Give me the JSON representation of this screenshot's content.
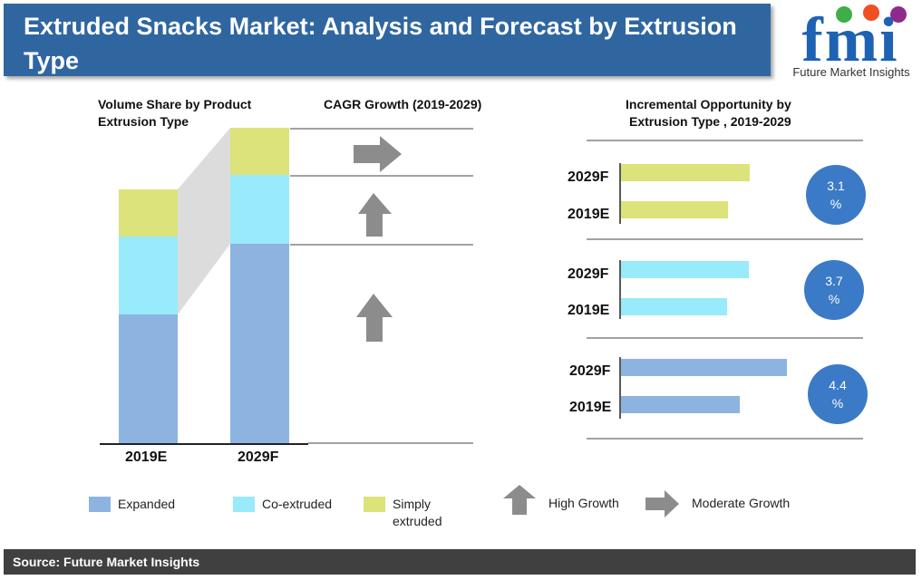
{
  "header": {
    "title": "Extruded Snacks Market: Analysis and Forecast by Extrusion Type",
    "logo_text": "fmi",
    "logo_subtitle": "Future Market Insights"
  },
  "sections": {
    "volume_title_1": "Volume Share by Product",
    "volume_title_2": "Extrusion Type",
    "cagr_title": "CAGR Growth (2019-2029)",
    "incremental_title_1": "Incremental Opportunity by",
    "incremental_title_2": "Extrusion Type , 2019-2029"
  },
  "colors": {
    "expanded": "#8db4e0",
    "co_extruded": "#99eafa",
    "simply_extruded": "#dbe37a",
    "circle": "#3b7ac6",
    "arrow": "#8c8c8c",
    "title_bar": "#2f66a0"
  },
  "chart_data": [
    {
      "type": "bar",
      "subtype": "stacked",
      "title": "Volume Share by Product Extrusion Type",
      "categories": [
        "2019E",
        "2029F"
      ],
      "series": [
        {
          "name": "Expanded",
          "values": [
            142,
            220
          ]
        },
        {
          "name": "Co-extruded",
          "values": [
            86,
            76
          ]
        },
        {
          "name": "Simply extruded",
          "values": [
            52,
            52
          ]
        }
      ],
      "ylim": [
        0,
        350
      ]
    },
    {
      "type": "bar",
      "orientation": "horizontal",
      "title": "Incremental Opportunity by Extrusion Type , 2019-2029",
      "groups": [
        {
          "segment": "Simply extruded",
          "labels": [
            "2029F",
            "2019E"
          ],
          "values": [
            142,
            118
          ],
          "cagr": "3.1",
          "cagr_unit": "%",
          "growth": "Moderate Growth"
        },
        {
          "segment": "Co-extruded",
          "labels": [
            "2029F",
            "2019E"
          ],
          "values": [
            141,
            117
          ],
          "cagr": "3.7",
          "cagr_unit": "%",
          "growth": "High Growth"
        },
        {
          "segment": "Expanded",
          "labels": [
            "2029F",
            "2019E"
          ],
          "values": [
            183,
            131
          ],
          "cagr": "4.4",
          "cagr_unit": "%",
          "growth": "High Growth"
        }
      ],
      "xlim": [
        0,
        200
      ]
    }
  ],
  "legend": {
    "expanded": "Expanded",
    "co_extruded": "Co-extruded",
    "simply_1": "Simply",
    "simply_2": "extruded",
    "high_growth": "High Growth",
    "moderate_growth": "Moderate Growth"
  },
  "footer": {
    "source": "Source: Future Market Insights"
  }
}
